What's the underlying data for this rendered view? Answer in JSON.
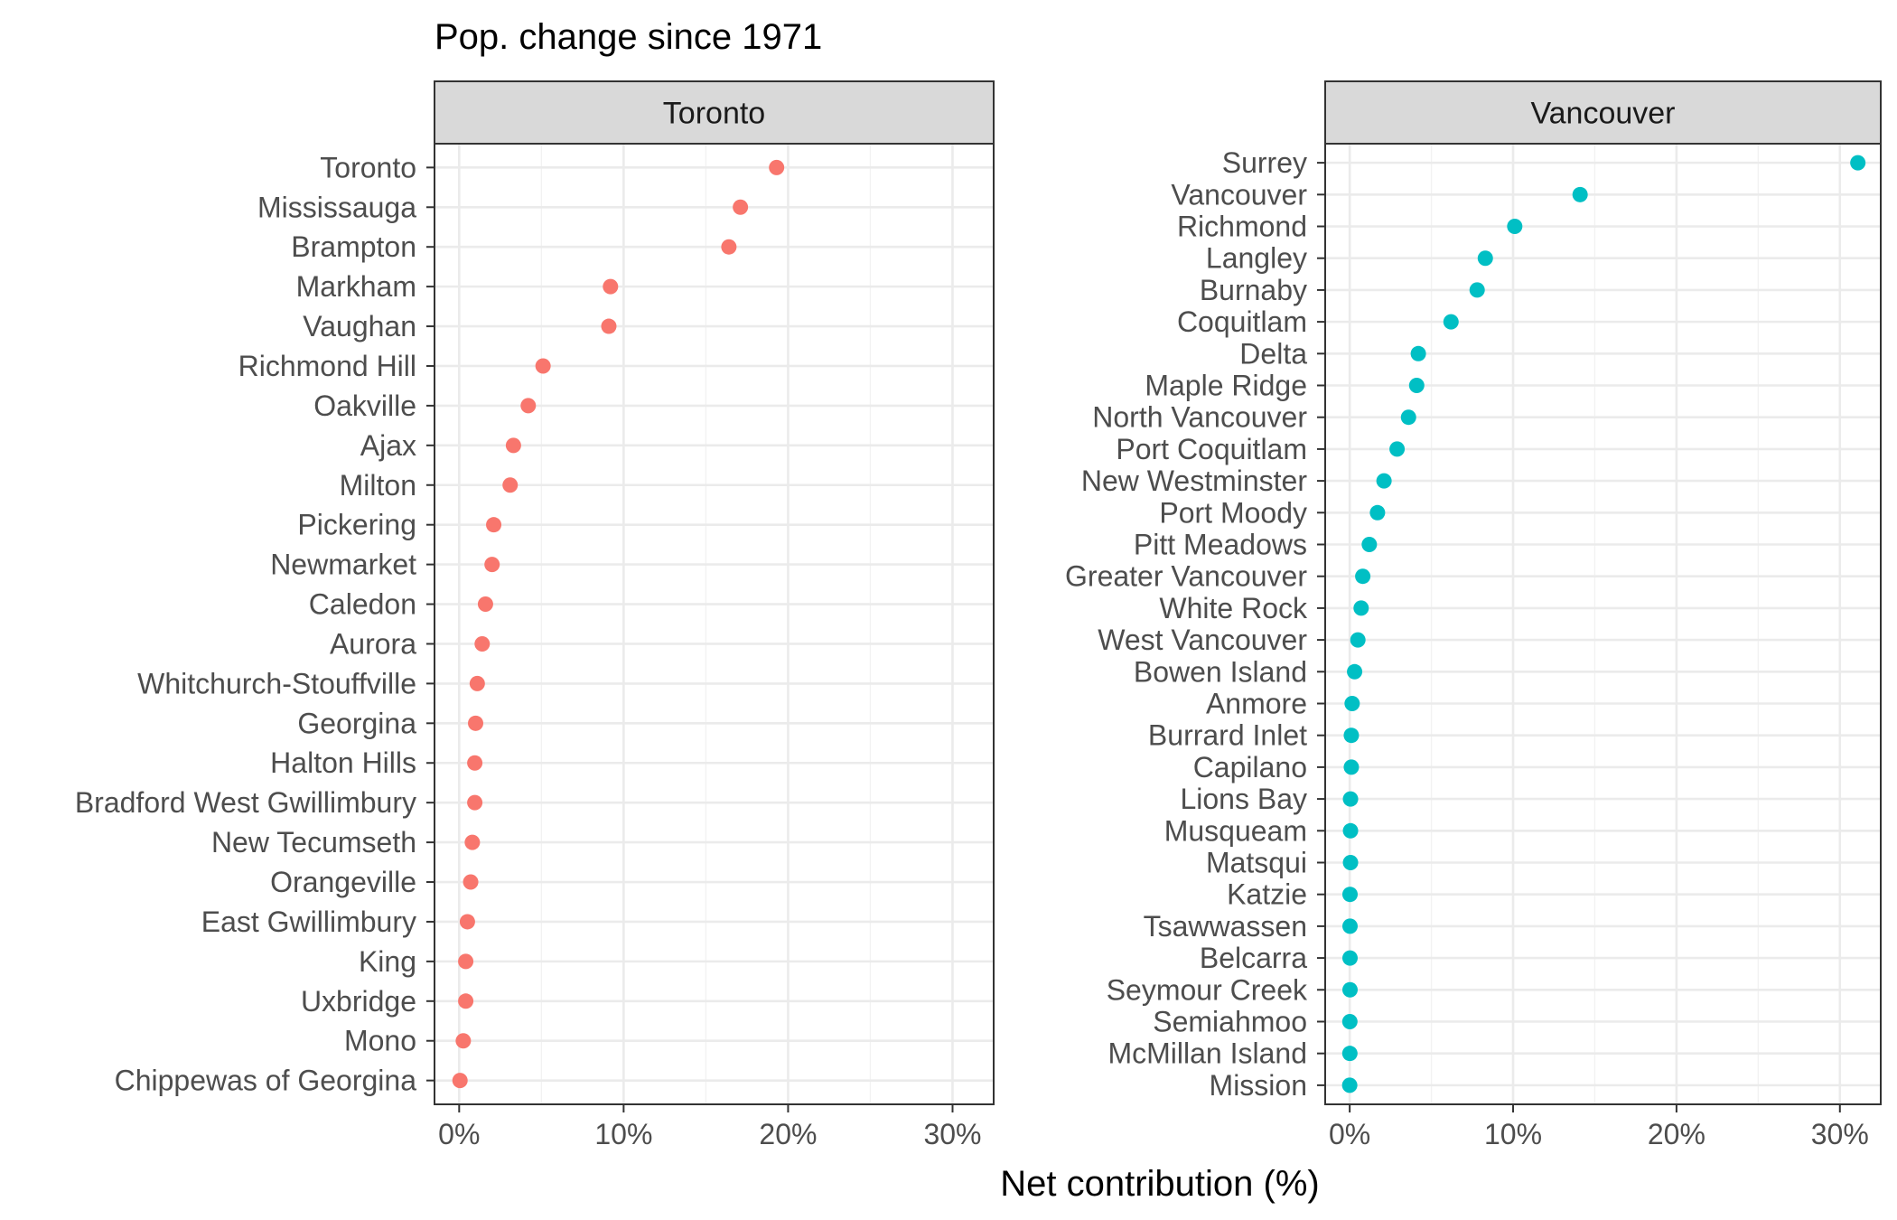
{
  "chart_data": {
    "type": "scatter",
    "title": "Pop. change since 1971",
    "xlabel": "Net contribution (%)",
    "ylabel": "",
    "xlim": [
      -1.5,
      32.5
    ],
    "xticks": [
      0,
      10,
      20,
      30
    ],
    "xtick_labels": [
      "0%",
      "10%",
      "20%",
      "30%"
    ],
    "grid": true,
    "legend": "none",
    "panels": [
      {
        "strip": "Toronto",
        "color": "#F8766D",
        "categories": [
          "Toronto",
          "Mississauga",
          "Brampton",
          "Markham",
          "Vaughan",
          "Richmond Hill",
          "Oakville",
          "Ajax",
          "Milton",
          "Pickering",
          "Newmarket",
          "Caledon",
          "Aurora",
          "Whitchurch-Stouffville",
          "Georgina",
          "Halton Hills",
          "Bradford West Gwillimbury",
          "New Tecumseth",
          "Orangeville",
          "East Gwillimbury",
          "King",
          "Uxbridge",
          "Mono",
          "Chippewas of Georgina"
        ],
        "values": [
          19.3,
          17.1,
          16.4,
          9.2,
          9.1,
          5.1,
          4.2,
          3.3,
          3.1,
          2.1,
          2.0,
          1.6,
          1.4,
          1.1,
          1.0,
          0.95,
          0.95,
          0.8,
          0.7,
          0.5,
          0.4,
          0.4,
          0.25,
          0.05
        ]
      },
      {
        "strip": "Vancouver",
        "color": "#00BFC4",
        "categories": [
          "Surrey",
          "Vancouver",
          "Richmond",
          "Langley",
          "Burnaby",
          "Coquitlam",
          "Delta",
          "Maple Ridge",
          "North Vancouver",
          "Port Coquitlam",
          "New Westminster",
          "Port Moody",
          "Pitt Meadows",
          "Greater Vancouver",
          "White Rock",
          "West Vancouver",
          "Bowen Island",
          "Anmore",
          "Burrard Inlet",
          "Capilano",
          "Lions Bay",
          "Musqueam",
          "Matsqui",
          "Katzie",
          "Tsawwassen",
          "Belcarra",
          "Seymour Creek",
          "Semiahmoo",
          "McMillan Island",
          "Mission"
        ],
        "values": [
          31.1,
          14.1,
          10.1,
          8.3,
          7.8,
          6.2,
          4.2,
          4.1,
          3.6,
          2.9,
          2.1,
          1.7,
          1.2,
          0.8,
          0.7,
          0.5,
          0.3,
          0.15,
          0.1,
          0.1,
          0.05,
          0.05,
          0.05,
          0.02,
          0.02,
          0.02,
          0.02,
          0.01,
          0.01,
          0.0
        ]
      }
    ]
  }
}
